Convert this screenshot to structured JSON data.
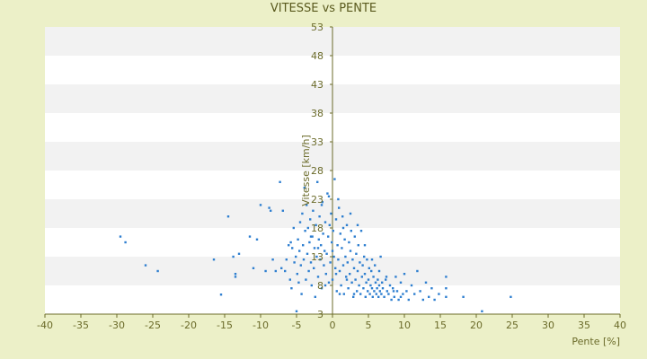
{
  "chart_data": {
    "type": "scatter",
    "title": "VITESSE vs PENTE",
    "xlabel": "Pente [%]",
    "ylabel": "Vitesse [km/h]",
    "xlim": [
      -40,
      40
    ],
    "ylim": [
      3,
      53
    ],
    "x_ticks": [
      -40,
      -35,
      -30,
      -25,
      -20,
      -15,
      -10,
      -5,
      0,
      5,
      10,
      15,
      20,
      25,
      30,
      35,
      40
    ],
    "y_ticks": [
      3,
      8,
      13,
      18,
      23,
      28,
      33,
      38,
      43,
      48,
      53
    ],
    "grid": "horizontal bands",
    "legend": "none",
    "colors": {
      "point": "#2f7fd0",
      "band_light": "#ffffff",
      "band_dark": "#f2f2f2",
      "axis": "#6b6b2a",
      "background": "#ecf0c8"
    },
    "series": [
      {
        "points": [
          [
            -29.5,
            16.5
          ],
          [
            -28.8,
            15.5
          ],
          [
            -26,
            11.5
          ],
          [
            -24.3,
            10.5
          ],
          [
            -16.5,
            12.5
          ],
          [
            -15.5,
            6.4
          ],
          [
            -14.5,
            20.0
          ],
          [
            -13.8,
            13.0
          ],
          [
            -13.5,
            10.0
          ],
          [
            -13.5,
            9.5
          ],
          [
            -13.0,
            13.5
          ],
          [
            -11.5,
            16.5
          ],
          [
            -11.0,
            11.0
          ],
          [
            -10.5,
            16.0
          ],
          [
            -10.0,
            22.0
          ],
          [
            -9.3,
            10.5
          ],
          [
            -8.8,
            21.5
          ],
          [
            -8.6,
            21.0
          ],
          [
            -8.3,
            12.5
          ],
          [
            -7.9,
            10.5
          ],
          [
            -7.3,
            26.0
          ],
          [
            -7.1,
            11.0
          ],
          [
            -6.9,
            21.0
          ],
          [
            -6.6,
            10.5
          ],
          [
            -6.4,
            12.5
          ],
          [
            -6.1,
            15.0
          ],
          [
            -5.9,
            9.0
          ],
          [
            -5.8,
            15.5
          ],
          [
            -5.7,
            7.5
          ],
          [
            -5.6,
            14.5
          ],
          [
            -5.4,
            18.0
          ],
          [
            -5.3,
            12.0
          ],
          [
            -5.1,
            13.0
          ],
          [
            -5.0,
            3.5
          ],
          [
            -4.9,
            10.0
          ],
          [
            -4.8,
            16.0
          ],
          [
            -4.7,
            8.5
          ],
          [
            -4.6,
            14.0
          ],
          [
            -4.5,
            19.0
          ],
          [
            -4.4,
            11.5
          ],
          [
            -4.3,
            6.5
          ],
          [
            -4.2,
            20.5
          ],
          [
            -4.1,
            15.0
          ],
          [
            -4.0,
            12.5
          ],
          [
            -3.9,
            25.0
          ],
          [
            -3.8,
            17.5
          ],
          [
            -3.7,
            9.0
          ],
          [
            -3.6,
            22.0
          ],
          [
            -3.5,
            13.5
          ],
          [
            -3.4,
            18.0
          ],
          [
            -3.3,
            10.5
          ],
          [
            -3.2,
            15.5
          ],
          [
            -3.1,
            19.5
          ],
          [
            -3.0,
            12.0
          ],
          [
            -2.9,
            8.0
          ],
          [
            -2.8,
            16.5
          ],
          [
            -2.7,
            21.0
          ],
          [
            -2.6,
            11.0
          ],
          [
            -2.5,
            14.5
          ],
          [
            -2.4,
            6.0
          ],
          [
            -2.3,
            18.5
          ],
          [
            -2.2,
            13.0
          ],
          [
            -2.1,
            26.0
          ],
          [
            -2.0,
            9.5
          ],
          [
            -1.9,
            16.0
          ],
          [
            -1.8,
            20.0
          ],
          [
            -1.7,
            12.5
          ],
          [
            -1.6,
            15.0
          ],
          [
            -1.5,
            7.5
          ],
          [
            -1.4,
            22.5
          ],
          [
            -1.3,
            17.0
          ],
          [
            -1.2,
            11.5
          ],
          [
            -1.1,
            14.0
          ],
          [
            -1.0,
            19.0
          ],
          [
            -0.9,
            10.0
          ],
          [
            -0.8,
            13.5
          ],
          [
            -0.7,
            24.0
          ],
          [
            -0.6,
            16.5
          ],
          [
            -0.5,
            8.5
          ],
          [
            -0.4,
            18.5
          ],
          [
            -0.3,
            12.0
          ],
          [
            -0.2,
            20.5
          ],
          [
            -0.1,
            15.5
          ],
          [
            0.0,
            9.0
          ],
          [
            0.1,
            17.5
          ],
          [
            0.2,
            13.0
          ],
          [
            0.3,
            26.5
          ],
          [
            0.4,
            11.0
          ],
          [
            0.5,
            19.5
          ],
          [
            0.6,
            7.0
          ],
          [
            0.7,
            15.0
          ],
          [
            0.8,
            12.5
          ],
          [
            0.9,
            21.5
          ],
          [
            1.0,
            10.5
          ],
          [
            1.1,
            17.0
          ],
          [
            1.2,
            8.0
          ],
          [
            1.3,
            14.5
          ],
          [
            1.4,
            20.0
          ],
          [
            1.5,
            11.5
          ],
          [
            1.6,
            6.5
          ],
          [
            1.7,
            16.0
          ],
          [
            1.8,
            13.0
          ],
          [
            1.9,
            9.5
          ],
          [
            2.0,
            18.5
          ],
          [
            2.1,
            12.0
          ],
          [
            2.2,
            7.5
          ],
          [
            2.3,
            15.5
          ],
          [
            2.4,
            10.0
          ],
          [
            2.5,
            14.0
          ],
          [
            2.6,
            17.5
          ],
          [
            2.7,
            8.5
          ],
          [
            2.8,
            12.5
          ],
          [
            2.9,
            6.0
          ],
          [
            3.0,
            11.0
          ],
          [
            3.1,
            16.5
          ],
          [
            3.2,
            9.0
          ],
          [
            3.3,
            13.5
          ],
          [
            3.4,
            7.0
          ],
          [
            3.5,
            10.5
          ],
          [
            3.6,
            15.0
          ],
          [
            3.7,
            8.0
          ],
          [
            3.8,
            12.0
          ],
          [
            3.9,
            6.5
          ],
          [
            4.0,
            17.5
          ],
          [
            4.1,
            9.5
          ],
          [
            4.2,
            11.5
          ],
          [
            4.3,
            7.5
          ],
          [
            4.4,
            13.0
          ],
          [
            4.5,
            10.0
          ],
          [
            4.6,
            6.0
          ],
          [
            4.7,
            8.5
          ],
          [
            4.8,
            12.5
          ],
          [
            4.9,
            7.0
          ],
          [
            5.0,
            9.0
          ],
          [
            5.1,
            11.0
          ],
          [
            5.2,
            6.5
          ],
          [
            5.3,
            8.0
          ],
          [
            5.4,
            10.5
          ],
          [
            5.5,
            7.5
          ],
          [
            5.6,
            6.0
          ],
          [
            5.7,
            9.5
          ],
          [
            5.8,
            7.0
          ],
          [
            5.9,
            11.5
          ],
          [
            6.0,
            8.5
          ],
          [
            6.1,
            6.5
          ],
          [
            6.2,
            7.5
          ],
          [
            6.3,
            9.0
          ],
          [
            6.4,
            6.0
          ],
          [
            6.5,
            8.0
          ],
          [
            6.6,
            7.0
          ],
          [
            6.7,
            13.0
          ],
          [
            6.8,
            6.5
          ],
          [
            6.9,
            8.5
          ],
          [
            7.0,
            7.5
          ],
          [
            7.2,
            6.0
          ],
          [
            7.4,
            9.0
          ],
          [
            7.6,
            7.0
          ],
          [
            7.8,
            6.5
          ],
          [
            8.0,
            8.0
          ],
          [
            8.2,
            5.5
          ],
          [
            8.4,
            7.5
          ],
          [
            8.6,
            6.0
          ],
          [
            8.8,
            9.5
          ],
          [
            9.0,
            7.0
          ],
          [
            9.2,
            5.5
          ],
          [
            9.5,
            8.5
          ],
          [
            9.8,
            6.5
          ],
          [
            10.0,
            10.0
          ],
          [
            10.3,
            7.0
          ],
          [
            10.6,
            5.5
          ],
          [
            11.0,
            8.0
          ],
          [
            11.4,
            6.5
          ],
          [
            11.8,
            10.5
          ],
          [
            12.2,
            7.0
          ],
          [
            12.6,
            5.5
          ],
          [
            13.0,
            8.5
          ],
          [
            13.4,
            6.0
          ],
          [
            13.8,
            7.5
          ],
          [
            14.2,
            5.5
          ],
          [
            14.8,
            6.5
          ],
          [
            15.8,
            9.5
          ],
          [
            15.8,
            7.5
          ],
          [
            15.8,
            6.0
          ],
          [
            18.2,
            6.0
          ],
          [
            20.8,
            3.5
          ],
          [
            24.8,
            6.0
          ],
          [
            -1.0,
            8.0
          ],
          [
            0.5,
            10.0
          ],
          [
            1.0,
            6.5
          ],
          [
            2.0,
            9.0
          ],
          [
            3.0,
            6.5
          ],
          [
            -2.0,
            14.5
          ],
          [
            -3.0,
            16.5
          ],
          [
            0.0,
            14.0
          ],
          [
            1.5,
            18.0
          ],
          [
            -1.5,
            22.0
          ],
          [
            0.8,
            23.0
          ],
          [
            -0.5,
            23.5
          ],
          [
            2.5,
            20.5
          ],
          [
            3.5,
            18.5
          ],
          [
            4.5,
            15.0
          ],
          [
            5.5,
            12.5
          ],
          [
            6.5,
            10.5
          ],
          [
            7.5,
            9.5
          ],
          [
            8.5,
            7.0
          ],
          [
            9.5,
            6.0
          ]
        ]
      }
    ]
  }
}
